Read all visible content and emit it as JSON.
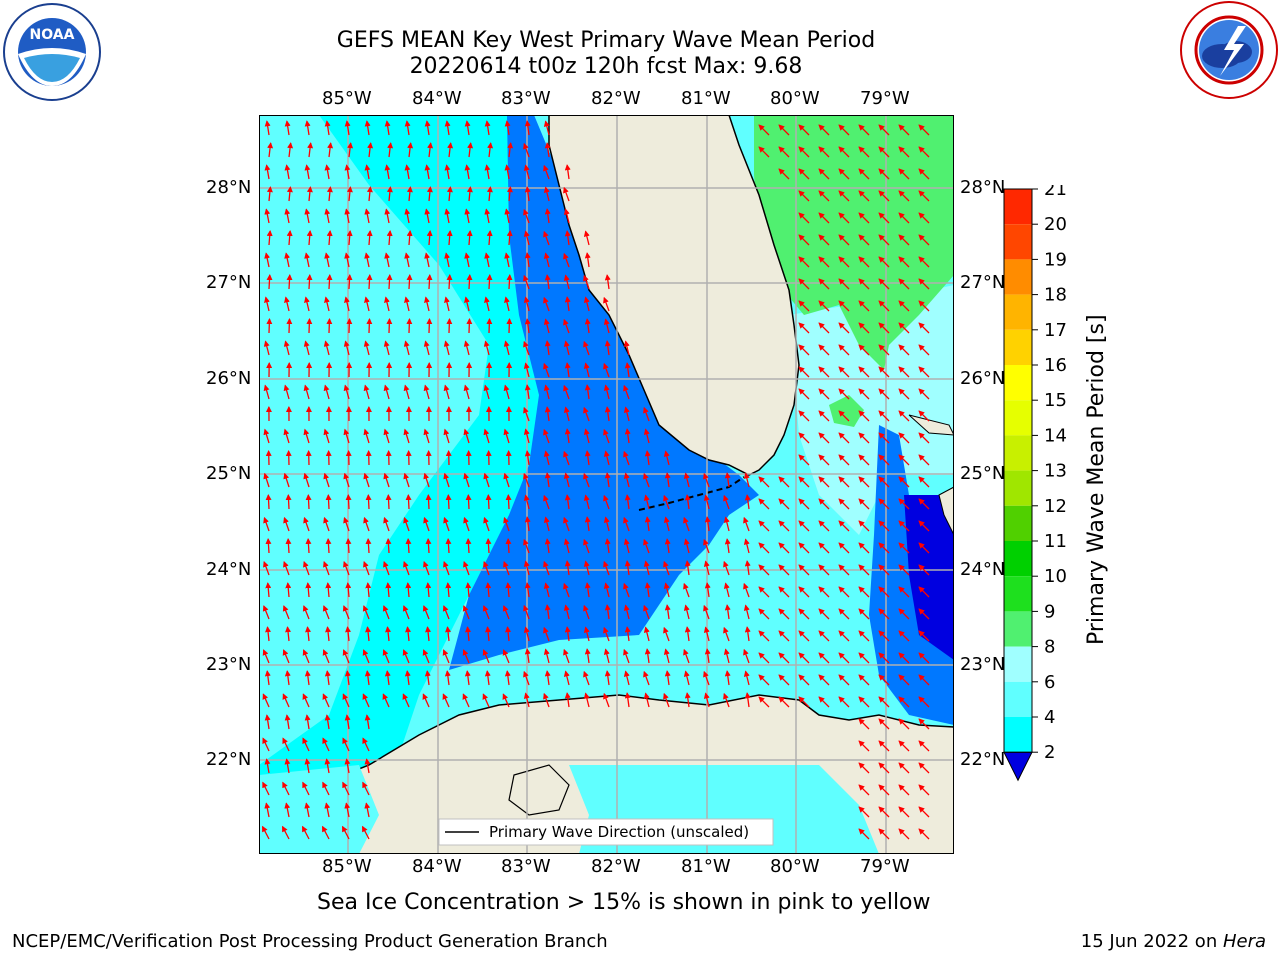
{
  "title": {
    "line1": "GEFS MEAN Key West Primary Wave Mean Period",
    "line2": "20220614 t00z 120h fcst   Max: 9.68"
  },
  "logos": {
    "left": "noaa-logo",
    "right": "national-weather-service-logo"
  },
  "map": {
    "lon_labels": [
      "85°W",
      "84°W",
      "83°W",
      "82°W",
      "81°W",
      "80°W",
      "79°W"
    ],
    "lat_labels": [
      "28°N",
      "27°N",
      "26°N",
      "25°N",
      "24°N",
      "23°N",
      "22°N"
    ],
    "legend_label": "Primary Wave Direction (unscaled)",
    "colors": {
      "land": "#eeecdc",
      "arrow": "#ff0000",
      "grid": "#b0b0b0"
    }
  },
  "colorbar": {
    "label": "Primary Wave Mean Period [s]",
    "ticks": [
      "2",
      "4",
      "6",
      "8",
      "9",
      "10",
      "11",
      "12",
      "13",
      "14",
      "15",
      "16",
      "17",
      "18",
      "19",
      "20",
      "21"
    ],
    "colors": [
      "#0078ff",
      "#00ffff",
      "#60ffff",
      "#a0ffff",
      "#50f070",
      "#1ee01e",
      "#00d000",
      "#50d000",
      "#a0e600",
      "#c8f000",
      "#e6ff00",
      "#ffff00",
      "#ffd200",
      "#ffb400",
      "#ff8c00",
      "#ff4600",
      "#ff2800",
      "#ff0000"
    ]
  },
  "caption": "Sea Ice Concentration > 15% is shown in pink to yellow",
  "footer": {
    "left": "NCEP/EMC/Verification Post Processing Product Generation Branch",
    "date": "15 Jun 2022 on ",
    "machine": "Hera"
  }
}
